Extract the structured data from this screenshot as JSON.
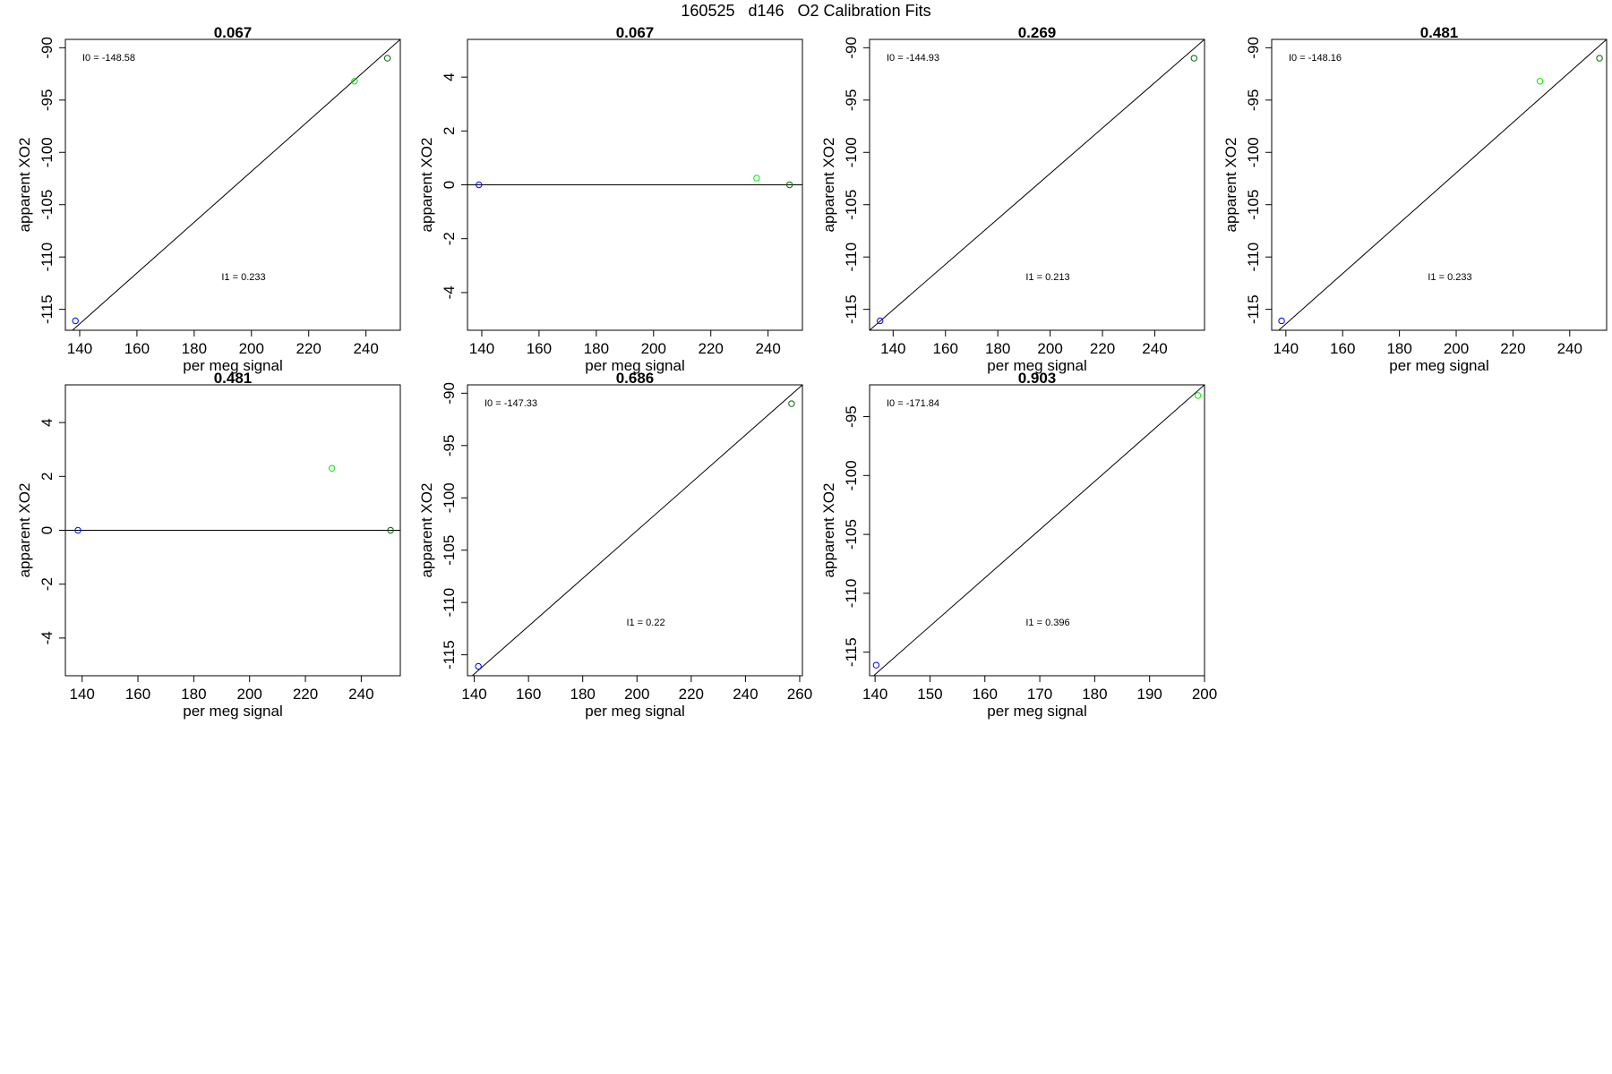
{
  "page": {
    "title": "160525   d146   O2 Calibration Fits"
  },
  "chart_data": [
    {
      "type": "scatter",
      "title": "0.067",
      "xlabel": "per meg signal",
      "ylabel": "apparent XO2",
      "xlim": [
        135,
        252
      ],
      "ylim": [
        -117,
        -89.2
      ],
      "xticks": [
        140,
        160,
        180,
        200,
        220,
        240
      ],
      "yticks": [
        -115,
        -110,
        -105,
        -100,
        -95,
        -90
      ],
      "points": [
        {
          "x": 138.5,
          "y": -116.1,
          "color": "blue"
        },
        {
          "x": 236,
          "y": -93.2,
          "color": "lime"
        },
        {
          "x": 247.5,
          "y": -91,
          "color": "green"
        }
      ],
      "fit_line": [
        [
          135,
          -117.6
        ],
        [
          252,
          -89.2
        ]
      ],
      "annotations": {
        "i0": "I0 =  -148.58",
        "i1": "I1 =  0.233"
      }
    },
    {
      "type": "scatter",
      "title": "0.067",
      "xlabel": "per meg signal",
      "ylabel": "apparent XO2",
      "xlim": [
        135,
        252
      ],
      "ylim": [
        -5.4,
        5.4
      ],
      "xticks": [
        140,
        160,
        180,
        200,
        220,
        240
      ],
      "yticks": [
        -4,
        -2,
        0,
        2,
        4
      ],
      "points": [
        {
          "x": 139,
          "y": 0,
          "color": "blue"
        },
        {
          "x": 236,
          "y": 0.25,
          "color": "lime"
        },
        {
          "x": 247.5,
          "y": 0,
          "color": "green"
        }
      ],
      "fit_line": [
        [
          135,
          0
        ],
        [
          252,
          0
        ]
      ],
      "annotations": {}
    },
    {
      "type": "scatter",
      "title": "0.269",
      "xlabel": "per meg signal",
      "ylabel": "apparent XO2",
      "xlim": [
        131,
        259
      ],
      "ylim": [
        -117,
        -89.2
      ],
      "xticks": [
        140,
        160,
        180,
        200,
        220,
        240
      ],
      "yticks": [
        -115,
        -110,
        -105,
        -100,
        -95,
        -90
      ],
      "points": [
        {
          "x": 135,
          "y": -116.1,
          "color": "blue"
        },
        {
          "x": 255,
          "y": -91,
          "color": "green"
        }
      ],
      "fit_line": [
        [
          131,
          -117
        ],
        [
          259,
          -89.2
        ]
      ],
      "annotations": {
        "i0": "I0 =  -144.93",
        "i1": "I1 =  0.213"
      }
    },
    {
      "type": "scatter",
      "title": "0.481",
      "xlabel": "per meg signal",
      "ylabel": "apparent XO2",
      "xlim": [
        135,
        253
      ],
      "ylim": [
        -117,
        -89.2
      ],
      "xticks": [
        140,
        160,
        180,
        200,
        220,
        240
      ],
      "yticks": [
        -115,
        -110,
        -105,
        -100,
        -95,
        -90
      ],
      "points": [
        {
          "x": 138.5,
          "y": -116.1,
          "color": "blue"
        },
        {
          "x": 229.5,
          "y": -93.2,
          "color": "lime"
        },
        {
          "x": 250.5,
          "y": -91,
          "color": "green"
        }
      ],
      "fit_line": [
        [
          135,
          -117.6
        ],
        [
          253,
          -89.2
        ]
      ],
      "annotations": {
        "i0": "I0 =  -148.16",
        "i1": "I1 =  0.233"
      }
    },
    {
      "type": "scatter",
      "title": "0.481",
      "xlabel": "per meg signal",
      "ylabel": "apparent XO2",
      "xlim": [
        134,
        254
      ],
      "ylim": [
        -5.4,
        5.4
      ],
      "xticks": [
        140,
        160,
        180,
        200,
        220,
        240
      ],
      "yticks": [
        -4,
        -2,
        0,
        2,
        4
      ],
      "points": [
        {
          "x": 138.5,
          "y": 0,
          "color": "blue"
        },
        {
          "x": 229.5,
          "y": 2.3,
          "color": "lime"
        },
        {
          "x": 250.5,
          "y": 0,
          "color": "green"
        }
      ],
      "fit_line": [
        [
          134,
          0
        ],
        [
          254,
          0
        ]
      ],
      "annotations": {}
    },
    {
      "type": "scatter",
      "title": "0.686",
      "xlabel": "per meg signal",
      "ylabel": "apparent XO2",
      "xlim": [
        137.5,
        261
      ],
      "ylim": [
        -117,
        -89.2
      ],
      "xticks": [
        140,
        160,
        180,
        200,
        220,
        240,
        260
      ],
      "yticks": [
        -115,
        -110,
        -105,
        -100,
        -95,
        -90
      ],
      "points": [
        {
          "x": 141.5,
          "y": -116.1,
          "color": "blue"
        },
        {
          "x": 257,
          "y": -91,
          "color": "green"
        }
      ],
      "fit_line": [
        [
          137.5,
          -117.4
        ],
        [
          261,
          -89.2
        ]
      ],
      "annotations": {
        "i0": "I0 =  -147.33",
        "i1": "I1 =  0.22"
      }
    },
    {
      "type": "scatter",
      "title": "0.903",
      "xlabel": "per meg signal",
      "ylabel": "apparent XO2",
      "xlim": [
        139,
        200
      ],
      "ylim": [
        -117,
        -92.3
      ],
      "xticks": [
        140,
        150,
        160,
        170,
        180,
        190,
        200
      ],
      "yticks": [
        -115,
        -110,
        -105,
        -100,
        -95
      ],
      "points": [
        {
          "x": 140.2,
          "y": -116.1,
          "color": "blue"
        },
        {
          "x": 198.8,
          "y": -93.2,
          "color": "lime"
        }
      ],
      "fit_line": [
        [
          139,
          -117.3
        ],
        [
          200,
          -92.3
        ]
      ],
      "annotations": {
        "i0": "I0 =  -171.84",
        "i1": "I1 =  0.396"
      }
    }
  ]
}
